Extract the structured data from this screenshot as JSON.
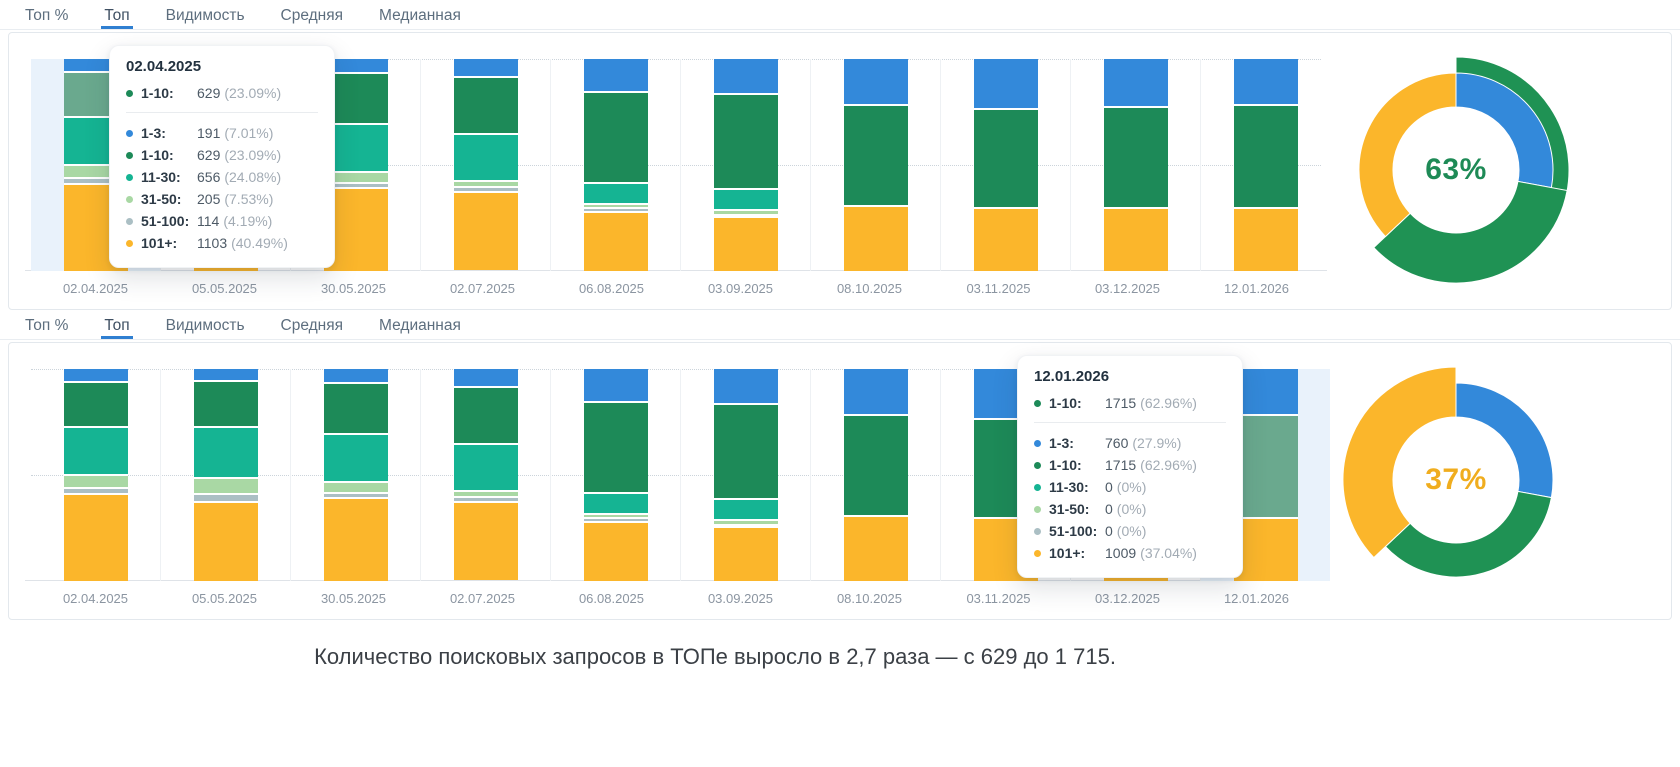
{
  "caption": "Количество поисковых запросов в ТОПе выросло в 2,7 раза — с 629 до 1 715.",
  "tabs": {
    "items": [
      "Топ %",
      "Топ",
      "Видимость",
      "Средняя",
      "Медианная"
    ],
    "active": "Топ"
  },
  "colors": {
    "blue": "#3389da",
    "green": "#1d8a58",
    "teal": "#15b493",
    "light_green": "#a9d8a4",
    "gray": "#abbfc4",
    "yellow": "#fbb62b",
    "faded_green": "#6aa98e",
    "highlight_band": "#e9f2fb",
    "tab_underline": "#2f7fd1"
  },
  "chart_data": [
    {
      "type": "bar",
      "stacked": true,
      "unit": "percent-of-column-height",
      "categories": [
        "02.04.2025",
        "05.05.2025",
        "30.05.2025",
        "02.07.2025",
        "06.08.2025",
        "03.09.2025",
        "08.10.2025",
        "03.11.2025",
        "03.12.2025",
        "12.01.2026"
      ],
      "series": [
        {
          "name": "1-3",
          "color": "#3389da",
          "values": [
            5.5,
            5,
            6,
            8,
            15,
            16,
            21,
            23,
            22,
            21
          ]
        },
        {
          "name": "1-10",
          "color": "#1d8a58",
          "values": [
            21.5,
            22,
            24,
            27,
            43,
            45,
            48,
            47,
            48,
            49
          ]
        },
        {
          "name": "11-30",
          "color": "#15b493",
          "values": [
            22.5,
            24,
            23,
            22,
            10,
            10,
            0,
            0,
            0,
            0
          ]
        },
        {
          "name": "31-50",
          "color": "#a9d8a4",
          "values": [
            6,
            7.5,
            5,
            3,
            2,
            2,
            0,
            0,
            0,
            0
          ]
        },
        {
          "name": "51-100",
          "color": "#abbfc4",
          "values": [
            3,
            4,
            2.5,
            2.5,
            1.5,
            1,
            0,
            0,
            0,
            0
          ]
        },
        {
          "name": "101+",
          "color": "#fbb62b",
          "values": [
            41.5,
            37.5,
            39.5,
            37,
            28.5,
            26,
            31,
            30,
            30,
            30
          ]
        }
      ],
      "highlight_index": 0,
      "faded_series": "1-10",
      "faded_color": "#6aa98e",
      "donut": {
        "type": "pie",
        "center_label": "63%",
        "center_label_color": "#1e8a56",
        "slices": [
          {
            "name": "1-3",
            "value": 27.9,
            "color": "#3389da"
          },
          {
            "name": "1-10",
            "value": 35.06,
            "color": "#1f9254",
            "large": true
          },
          {
            "name": "101+",
            "value": 37.04,
            "color": "#fbb62b"
          }
        ],
        "underlay": {
          "from_pct": 0,
          "to_pct": 62.96,
          "color": "#1f9254"
        }
      },
      "tooltip": {
        "date": "02.04.2025",
        "summary": {
          "name": "1-10:",
          "value": "629",
          "pct": "(23.09%)",
          "color": "#1d8a58"
        },
        "rows": [
          {
            "name": "1-3:",
            "value": "191",
            "pct": "(7.01%)",
            "color": "#3389da"
          },
          {
            "name": "1-10:",
            "value": "629",
            "pct": "(23.09%)",
            "color": "#1d8a58"
          },
          {
            "name": "11-30:",
            "value": "656",
            "pct": "(24.08%)",
            "color": "#15b493"
          },
          {
            "name": "31-50:",
            "value": "205",
            "pct": "(7.53%)",
            "color": "#a9d8a4"
          },
          {
            "name": "51-100:",
            "value": "114",
            "pct": "(4.19%)",
            "color": "#abbfc4"
          },
          {
            "name": "101+:",
            "value": "1103",
            "pct": "(40.49%)",
            "color": "#fbb62b"
          }
        ]
      }
    },
    {
      "type": "bar",
      "stacked": true,
      "unit": "percent-of-column-height",
      "categories": [
        "02.04.2025",
        "05.05.2025",
        "30.05.2025",
        "02.07.2025",
        "06.08.2025",
        "03.09.2025",
        "08.10.2025",
        "03.11.2025",
        "03.12.2025",
        "12.01.2026"
      ],
      "series": [
        {
          "name": "1-3",
          "color": "#3389da",
          "values": [
            5.5,
            5,
            6,
            8,
            15,
            16,
            21,
            23,
            22,
            21
          ]
        },
        {
          "name": "1-10",
          "color": "#1d8a58",
          "values": [
            21.5,
            22,
            24,
            27,
            43,
            45,
            48,
            47,
            48,
            49
          ]
        },
        {
          "name": "11-30",
          "color": "#15b493",
          "values": [
            22.5,
            24,
            23,
            22,
            10,
            10,
            0,
            0,
            0,
            0
          ]
        },
        {
          "name": "31-50",
          "color": "#a9d8a4",
          "values": [
            6,
            7.5,
            5,
            3,
            2,
            2,
            0,
            0,
            0,
            0
          ]
        },
        {
          "name": "51-100",
          "color": "#abbfc4",
          "values": [
            3,
            4,
            2.5,
            2.5,
            1.5,
            1,
            0,
            0,
            0,
            0
          ]
        },
        {
          "name": "101+",
          "color": "#fbb62b",
          "values": [
            41.5,
            37.5,
            39.5,
            37,
            28.5,
            26,
            31,
            30,
            30,
            30
          ]
        }
      ],
      "highlight_index": 9,
      "faded_series": "1-10",
      "faded_color": "#6aa98e",
      "donut": {
        "type": "pie",
        "center_label": "37%",
        "center_label_color": "#f0ad1e",
        "slices": [
          {
            "name": "1-3",
            "value": 27.9,
            "color": "#3389da"
          },
          {
            "name": "1-10",
            "value": 35.06,
            "color": "#1f9254"
          },
          {
            "name": "101+",
            "value": 37.04,
            "color": "#fbb62b",
            "large": true
          }
        ]
      },
      "tooltip": {
        "date": "12.01.2026",
        "summary": {
          "name": "1-10:",
          "value": "1715",
          "pct": "(62.96%)",
          "color": "#1d8a58"
        },
        "rows": [
          {
            "name": "1-3:",
            "value": "760",
            "pct": "(27.9%)",
            "color": "#3389da"
          },
          {
            "name": "1-10:",
            "value": "1715",
            "pct": "(62.96%)",
            "color": "#1d8a58"
          },
          {
            "name": "11-30:",
            "value": "0",
            "pct": "(0%)",
            "color": "#15b493"
          },
          {
            "name": "31-50:",
            "value": "0",
            "pct": "(0%)",
            "color": "#a9d8a4"
          },
          {
            "name": "51-100:",
            "value": "0",
            "pct": "(0%)",
            "color": "#abbfc4"
          },
          {
            "name": "101+:",
            "value": "1009",
            "pct": "(37.04%)",
            "color": "#fbb62b"
          }
        ]
      }
    }
  ]
}
